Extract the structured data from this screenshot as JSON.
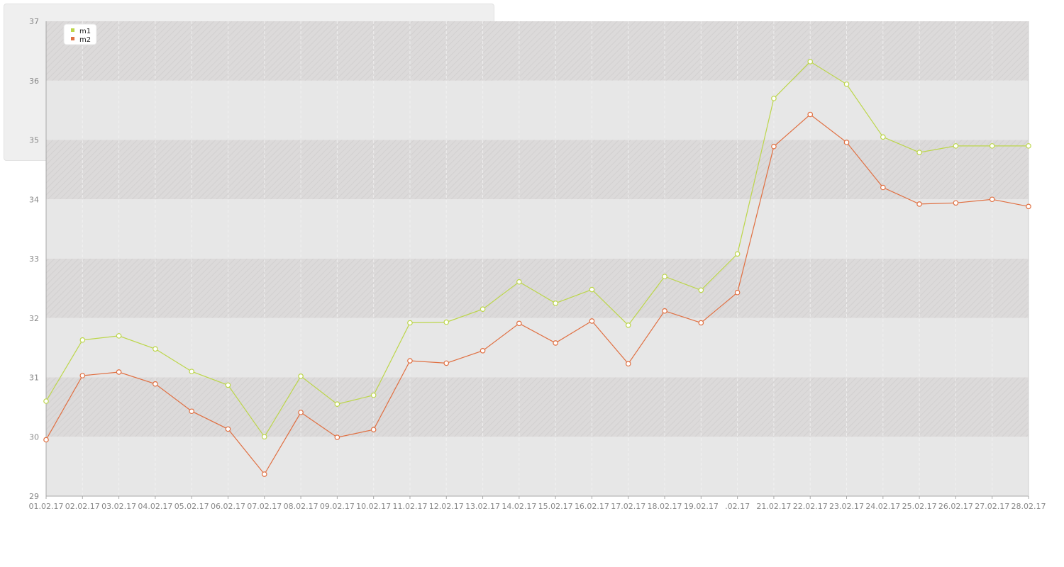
{
  "chart_data": {
    "type": "line",
    "categories": [
      "01.02.17",
      "02.02.17",
      "03.02.17",
      "04.02.17",
      "05.02.17",
      "06.02.17",
      "07.02.17",
      "08.02.17",
      "09.02.17",
      "10.02.17",
      "11.02.17",
      "12.02.17",
      "13.02.17",
      "14.02.17",
      "15.02.17",
      "16.02.17",
      "17.02.17",
      "18.02.17",
      "19.02.17",
      ".02.17",
      "21.02.17",
      "22.02.17",
      "23.02.17",
      "24.02.17",
      "25.02.17",
      "26.02.17",
      "27.02.17",
      "28.02.17"
    ],
    "series": [
      {
        "name": "m1",
        "color": "#bcd64a",
        "values": [
          30.6,
          31.63,
          31.7,
          31.48,
          31.1,
          30.87,
          30.0,
          31.02,
          30.55,
          30.7,
          31.92,
          31.93,
          32.15,
          32.61,
          32.25,
          32.48,
          31.88,
          32.7,
          32.47,
          33.08,
          35.7,
          36.32,
          35.94,
          35.05,
          34.79,
          34.9,
          34.9,
          34.9
        ]
      },
      {
        "name": "m2",
        "color": "#e06f41",
        "values": [
          29.95,
          31.03,
          31.09,
          30.89,
          30.43,
          30.13,
          29.37,
          30.41,
          29.99,
          30.12,
          31.28,
          31.24,
          31.45,
          31.91,
          31.58,
          31.95,
          31.23,
          32.12,
          31.92,
          32.43,
          34.89,
          35.43,
          34.96,
          34.2,
          33.92,
          33.94,
          34.0,
          33.88
        ]
      }
    ],
    "yticks": [
      "29",
      "30",
      "31",
      "32",
      "33",
      "34",
      "35",
      "36",
      "37"
    ],
    "ylim": [
      29,
      37
    ],
    "legend_position": "top-left",
    "title": "",
    "xlabel": "",
    "ylabel": ""
  }
}
